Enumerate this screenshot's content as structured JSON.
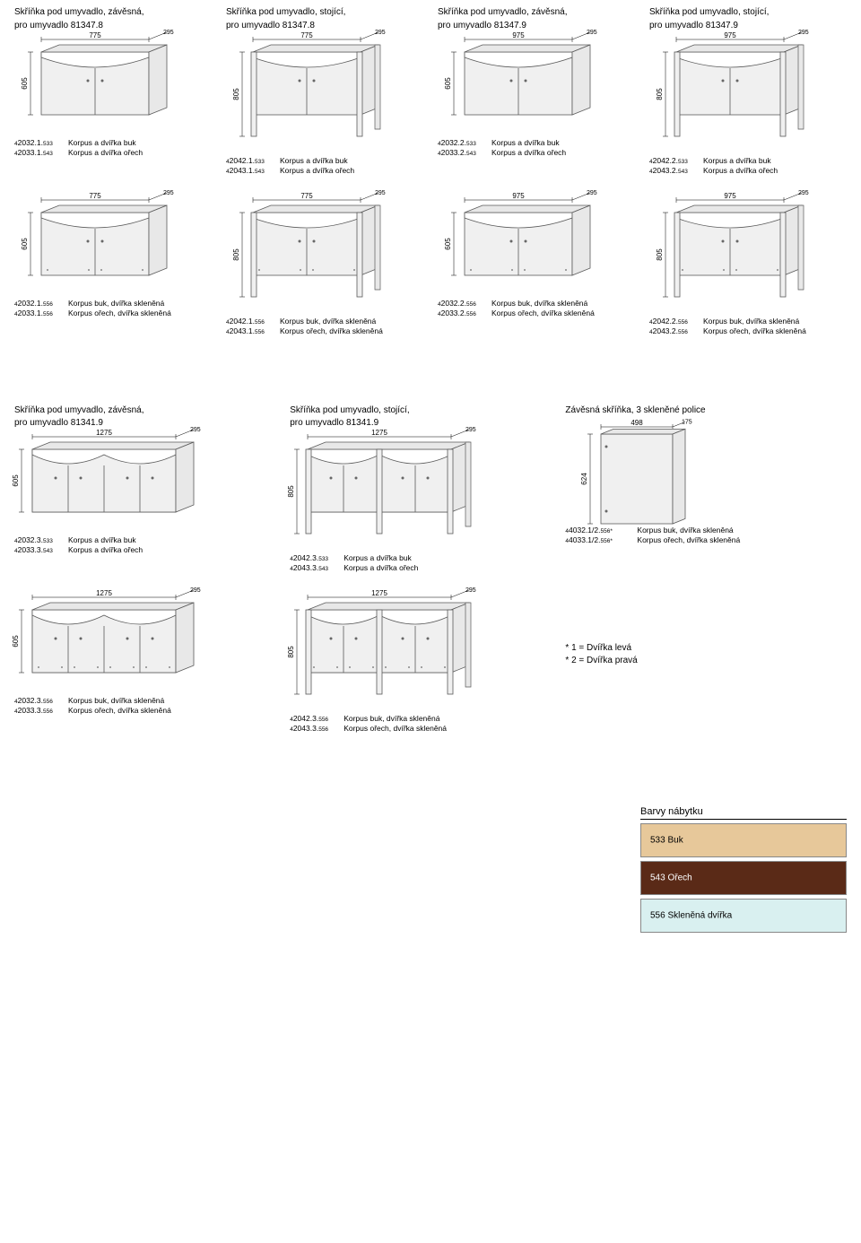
{
  "row1": {
    "items": [
      {
        "title": "Skříňka pod umyvadlo, závěsná,",
        "sub": "pro umyvadlo 81347.8",
        "width": "775",
        "depth": "295",
        "height": "605",
        "legs": false,
        "codes": [
          {
            "code": "42032.1.533",
            "desc": "Korpus a dvířka buk"
          },
          {
            "code": "42033.1.543",
            "desc": "Korpus a dvířka ořech"
          }
        ]
      },
      {
        "title": "Skříňka pod umyvadlo, stojící,",
        "sub": "pro umyvadlo 81347.8",
        "width": "775",
        "depth": "295",
        "height": "805",
        "legs": true,
        "codes": [
          {
            "code": "42042.1.533",
            "desc": "Korpus a dvířka buk"
          },
          {
            "code": "42043.1.543",
            "desc": "Korpus a dvířka ořech"
          }
        ]
      },
      {
        "title": "Skříňka pod umyvadlo, závěsná,",
        "sub": "pro umyvadlo 81347.9",
        "width": "975",
        "depth": "295",
        "height": "605",
        "legs": false,
        "codes": [
          {
            "code": "42032.2.533",
            "desc": "Korpus a dvířka buk"
          },
          {
            "code": "42033.2.543",
            "desc": "Korpus a dvířka ořech"
          }
        ]
      },
      {
        "title": "Skříňka pod umyvadlo, stojící,",
        "sub": "pro umyvadlo 81347.9",
        "width": "975",
        "depth": "295",
        "height": "805",
        "legs": true,
        "codes": [
          {
            "code": "42042.2.533",
            "desc": "Korpus a dvířka buk"
          },
          {
            "code": "42043.2.543",
            "desc": "Korpus a dvířka ořech"
          }
        ]
      }
    ]
  },
  "row2": {
    "items": [
      {
        "width": "775",
        "depth": "295",
        "height": "605",
        "legs": false,
        "glass": true,
        "codes": [
          {
            "code": "42032.1.556",
            "desc": "Korpus buk, dvířka skleněná"
          },
          {
            "code": "42033.1.556",
            "desc": "Korpus ořech, dvířka skleněná"
          }
        ]
      },
      {
        "width": "775",
        "depth": "295",
        "height": "805",
        "legs": true,
        "glass": true,
        "codes": [
          {
            "code": "42042.1.556",
            "desc": "Korpus buk, dvířka skleněná"
          },
          {
            "code": "42043.1.556",
            "desc": "Korpus ořech, dvířka skleněná"
          }
        ]
      },
      {
        "width": "975",
        "depth": "295",
        "height": "605",
        "legs": false,
        "glass": true,
        "codes": [
          {
            "code": "42032.2.556",
            "desc": "Korpus buk, dvířka skleněná"
          },
          {
            "code": "42033.2.556",
            "desc": "Korpus ořech, dvířka skleněná"
          }
        ]
      },
      {
        "width": "975",
        "depth": "295",
        "height": "805",
        "legs": true,
        "glass": true,
        "codes": [
          {
            "code": "42042.2.556",
            "desc": "Korpus buk, dvířka skleněná"
          },
          {
            "code": "42043.2.556",
            "desc": "Korpus ořech, dvířka skleněná"
          }
        ]
      }
    ]
  },
  "row3": {
    "items": [
      {
        "title": "Skříňka pod umyvadlo, závěsná,",
        "sub": "pro umyvadlo 81341.9",
        "width": "1275",
        "depth": "295",
        "height": "605",
        "legs": false,
        "doors": 4,
        "codes": [
          {
            "code": "42032.3.533",
            "desc": "Korpus a dvířka buk"
          },
          {
            "code": "42033.3.543",
            "desc": "Korpus a dvířka ořech"
          }
        ]
      },
      {
        "title": "Skříňka pod umyvadlo, stojící,",
        "sub": "pro umyvadlo 81341.9",
        "width": "1275",
        "depth": "295",
        "height": "805",
        "legs": true,
        "doors": 4,
        "codes": [
          {
            "code": "42042.3.533",
            "desc": "Korpus a dvířka buk"
          },
          {
            "code": "42043.3.543",
            "desc": "Korpus a dvířka ořech"
          }
        ]
      },
      {
        "title": "Závěsná skříňka, 3 skleněné police",
        "sub": "",
        "width": "498",
        "depth": "175",
        "height": "624",
        "legs": false,
        "wallcab": true,
        "codes": [
          {
            "code": "44032.1/2.556*",
            "desc": "Korpus buk, dvířka skleněná"
          },
          {
            "code": "44033.1/2.556*",
            "desc": "Korpus ořech, dvířka skleněná"
          }
        ]
      }
    ]
  },
  "row4": {
    "items": [
      {
        "width": "1275",
        "depth": "295",
        "height": "605",
        "legs": false,
        "doors": 4,
        "glass": true,
        "codes": [
          {
            "code": "42032.3.556",
            "desc": "Korpus buk, dvířka skleněná"
          },
          {
            "code": "42033.3.556",
            "desc": "Korpus ořech, dvířka skleněná"
          }
        ]
      },
      {
        "width": "1275",
        "depth": "295",
        "height": "805",
        "legs": true,
        "doors": 4,
        "glass": true,
        "codes": [
          {
            "code": "42042.3.556",
            "desc": "Korpus buk, dvířka skleněná"
          },
          {
            "code": "42043.3.556",
            "desc": "Korpus ořech, dvířka skleněná"
          }
        ]
      }
    ],
    "notes": [
      "* 1 =  Dvířka levá",
      "* 2 =  Dvířka pravá"
    ]
  },
  "colors": {
    "header": "Barvy nábytku",
    "swatches": [
      {
        "label": "533  Buk",
        "color": "#e7c89a",
        "textColor": "#000"
      },
      {
        "label": "543  Ořech",
        "color": "#5a2a17",
        "textColor": "#fff"
      },
      {
        "label": "556  Skleněná dvířka",
        "color": "#d9f0f0",
        "textColor": "#000"
      }
    ]
  },
  "svg": {
    "stroke": "#5a5a5a",
    "fill": "#f0f0f0",
    "top_fill": "#e8e8e8"
  }
}
